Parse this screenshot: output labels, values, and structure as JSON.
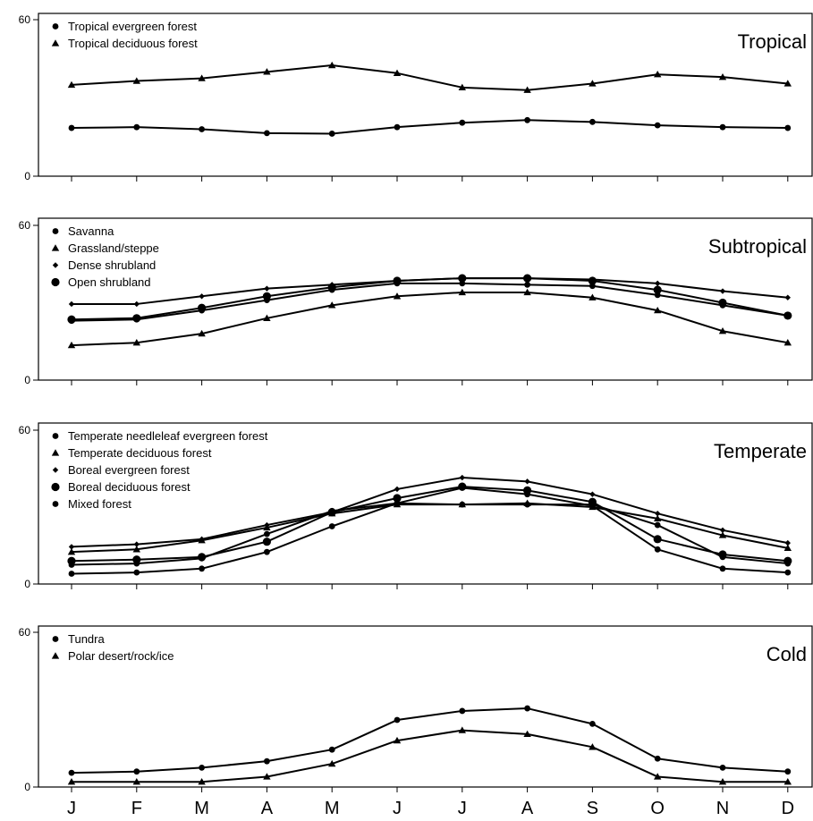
{
  "chart_data": [
    {
      "type": "line",
      "title": "Tropical",
      "categories": [
        "J",
        "F",
        "M",
        "A",
        "M",
        "J",
        "J",
        "A",
        "S",
        "O",
        "N",
        "D"
      ],
      "ylim": [
        0,
        60
      ],
      "yticks": [
        0,
        60
      ],
      "legend_position": "top-left",
      "series": [
        {
          "name": "Tropical evergreen forest",
          "marker": "circle",
          "values": [
            18.5,
            18.8,
            18,
            16.5,
            16.3,
            18.8,
            20.5,
            21.5,
            20.8,
            19.5,
            18.8,
            18.5
          ]
        },
        {
          "name": "Tropical deciduous forest",
          "marker": "triangle",
          "values": [
            35,
            36.5,
            37.5,
            40,
            42.5,
            39.5,
            34,
            33,
            35.5,
            39,
            38,
            35.5
          ]
        }
      ]
    },
    {
      "type": "line",
      "title": "Subtropical",
      "categories": [
        "J",
        "F",
        "M",
        "A",
        "M",
        "J",
        "J",
        "A",
        "S",
        "O",
        "N",
        "D"
      ],
      "ylim": [
        0,
        60
      ],
      "yticks": [
        0,
        60
      ],
      "legend_position": "top-left",
      "series": [
        {
          "name": "Savanna",
          "marker": "circle",
          "values": [
            23,
            23.5,
            27,
            31,
            35,
            37.5,
            37.5,
            37,
            36.5,
            33,
            29,
            25
          ]
        },
        {
          "name": "Grassland/steppe",
          "marker": "triangle",
          "values": [
            13.5,
            14.5,
            18,
            24,
            29,
            32.5,
            34,
            34,
            32,
            27,
            19,
            14.5
          ]
        },
        {
          "name": "Dense shrubland",
          "marker": "diamond",
          "values": [
            29.5,
            29.5,
            32.5,
            35.5,
            37,
            38.5,
            39.5,
            39.5,
            39,
            37.5,
            34.5,
            32
          ]
        },
        {
          "name": "Open shrubland",
          "marker": "big-circle",
          "values": [
            23.5,
            24,
            28,
            32.5,
            36,
            38.5,
            39.5,
            39.5,
            38.5,
            35,
            30,
            25
          ]
        }
      ]
    },
    {
      "type": "line",
      "title": "Temperate",
      "categories": [
        "J",
        "F",
        "M",
        "A",
        "M",
        "J",
        "J",
        "A",
        "S",
        "O",
        "N",
        "D"
      ],
      "ylim": [
        0,
        60
      ],
      "yticks": [
        0,
        60
      ],
      "legend_position": "top-left",
      "series": [
        {
          "name": "Temperate needleleaf evergreen forest",
          "marker": "circle",
          "values": [
            4,
            4.5,
            6,
            12.5,
            22.5,
            31.5,
            37.5,
            35,
            30.5,
            13.5,
            6,
            4.5
          ]
        },
        {
          "name": "Temperate deciduous forest",
          "marker": "triangle",
          "values": [
            12.5,
            13.5,
            17,
            22,
            27.5,
            31,
            31,
            31.5,
            30,
            25.5,
            19,
            14
          ]
        },
        {
          "name": "Boreal evergreen forest",
          "marker": "diamond",
          "values": [
            14.5,
            15.5,
            17.5,
            23,
            28,
            37,
            41.5,
            40,
            35,
            27.5,
            21,
            16
          ]
        },
        {
          "name": "Boreal deciduous forest",
          "marker": "big-circle",
          "values": [
            9,
            9.5,
            10.5,
            16.5,
            28,
            33.5,
            38,
            36.5,
            32,
            17.5,
            11.5,
            9
          ]
        },
        {
          "name": "Mixed forest",
          "marker": "circle",
          "values": [
            7.5,
            8,
            10,
            19.5,
            28.5,
            31.5,
            31,
            31,
            31,
            23,
            10.5,
            8
          ]
        }
      ]
    },
    {
      "type": "line",
      "title": "Cold",
      "categories": [
        "J",
        "F",
        "M",
        "A",
        "M",
        "J",
        "J",
        "A",
        "S",
        "O",
        "N",
        "D"
      ],
      "ylim": [
        0,
        60
      ],
      "yticks": [
        0,
        60
      ],
      "legend_position": "top-left",
      "series": [
        {
          "name": "Tundra",
          "marker": "circle",
          "values": [
            5.5,
            6,
            7.5,
            10,
            14.5,
            26,
            29.5,
            30.5,
            24.5,
            11,
            7.5,
            6
          ]
        },
        {
          "name": "Polar desert/rock/ice",
          "marker": "triangle",
          "values": [
            2,
            2,
            2,
            4,
            9,
            18,
            22,
            20.5,
            15.5,
            4,
            2,
            2
          ]
        }
      ]
    }
  ]
}
